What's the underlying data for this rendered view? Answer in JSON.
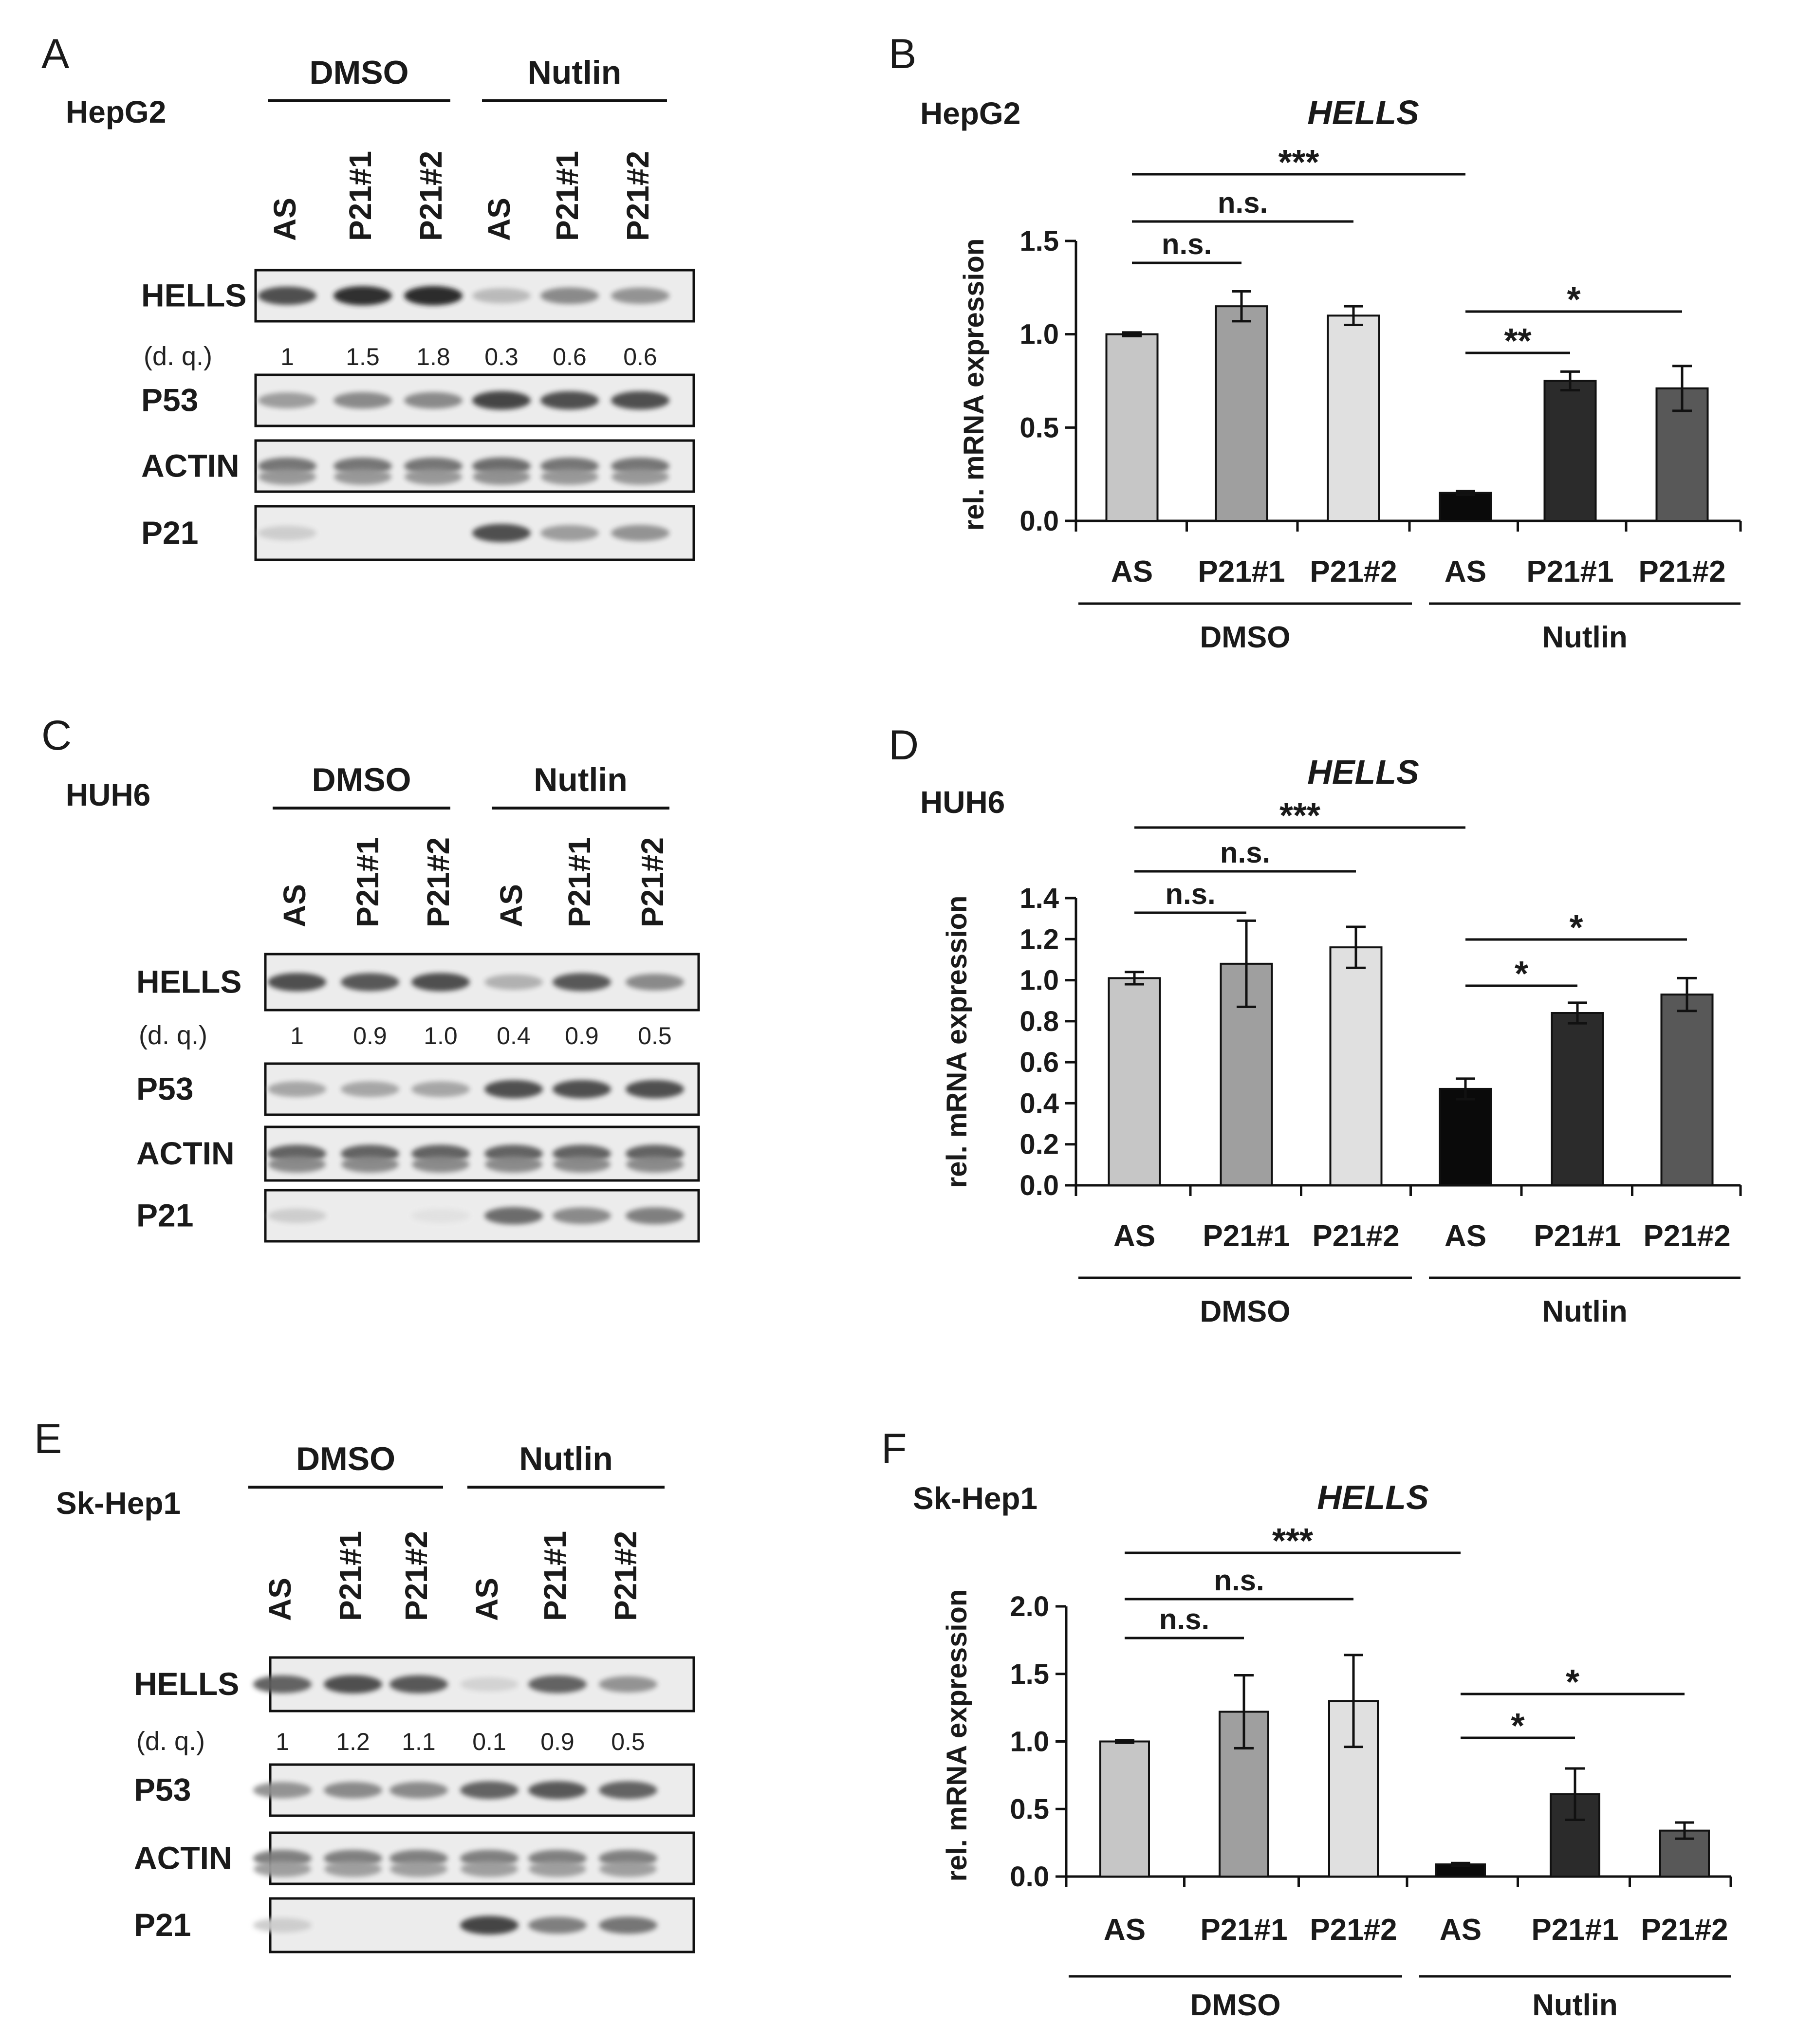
{
  "panels": [
    {
      "blot": {
        "letter": "A",
        "cell_line": "HepG2",
        "treatments": [
          "DMSO",
          "Nutlin"
        ],
        "lanes": [
          "AS",
          "P21#1",
          "P21#2",
          "AS",
          "P21#1",
          "P21#2"
        ],
        "rows": [
          "HELLS",
          "P53",
          "ACTIN",
          "P21"
        ],
        "dq_label": "(d. q.)",
        "dq_values": [
          "1",
          "1.5",
          "1.8",
          "0.3",
          "0.6",
          "0.6"
        ],
        "hells_intensity": [
          0.8,
          0.95,
          0.97,
          0.25,
          0.5,
          0.45
        ],
        "p53_intensity": [
          0.4,
          0.5,
          0.5,
          0.85,
          0.8,
          0.8
        ],
        "actin_intensity": [
          0.6,
          0.6,
          0.6,
          0.65,
          0.6,
          0.6
        ],
        "p21_intensity": [
          0.15,
          0.0,
          0.0,
          0.8,
          0.4,
          0.45
        ]
      },
      "chart": {
        "letter": "B",
        "cell_line": "HepG2",
        "title": "HELLS",
        "ylabel": "rel. mRNA expression",
        "ylim": [
          0,
          1.5
        ],
        "yticks": [
          "0.0",
          "0.5",
          "1.0",
          "1.5"
        ],
        "groups": [
          "DMSO",
          "Nutlin"
        ],
        "chart_data": {
          "type": "bar",
          "categories": [
            "AS",
            "P21#1",
            "P21#2",
            "AS",
            "P21#1",
            "P21#2"
          ],
          "values": [
            1.0,
            1.15,
            1.1,
            0.15,
            0.75,
            0.71
          ],
          "errors": [
            0.01,
            0.08,
            0.05,
            0.01,
            0.05,
            0.12
          ],
          "ylim": [
            0,
            1.5
          ]
        },
        "sig": [
          {
            "from": 0,
            "to": 3,
            "label": "***"
          },
          {
            "from": 0,
            "to": 2,
            "label": "n.s."
          },
          {
            "from": 0,
            "to": 1,
            "label": "n.s."
          },
          {
            "from": 3,
            "to": 5,
            "label": "*"
          },
          {
            "from": 3,
            "to": 4,
            "label": "**"
          }
        ]
      }
    },
    {
      "blot": {
        "letter": "C",
        "cell_line": "HUH6",
        "treatments": [
          "DMSO",
          "Nutlin"
        ],
        "lanes": [
          "AS",
          "P21#1",
          "P21#2",
          "AS",
          "P21#1",
          "P21#2"
        ],
        "rows": [
          "HELLS",
          "P53",
          "ACTIN",
          "P21"
        ],
        "dq_label": "(d. q.)",
        "dq_values": [
          "1",
          "0.9",
          "1.0",
          "0.4",
          "0.9",
          "0.5"
        ],
        "hells_intensity": [
          0.8,
          0.75,
          0.8,
          0.3,
          0.75,
          0.5
        ],
        "p53_intensity": [
          0.35,
          0.35,
          0.35,
          0.8,
          0.8,
          0.8
        ],
        "actin_intensity": [
          0.7,
          0.7,
          0.7,
          0.7,
          0.7,
          0.7
        ],
        "p21_intensity": [
          0.15,
          0.0,
          0.05,
          0.65,
          0.5,
          0.55
        ]
      },
      "chart": {
        "letter": "D",
        "cell_line": "HUH6",
        "title": "HELLS",
        "ylabel": "rel. mRNA expression",
        "ylim": [
          0,
          1.4
        ],
        "yticks": [
          "0.0",
          "0.2",
          "0.4",
          "0.6",
          "0.8",
          "1.0",
          "1.2",
          "1.4"
        ],
        "groups": [
          "DMSO",
          "Nutlin"
        ],
        "chart_data": {
          "type": "bar",
          "categories": [
            "AS",
            "P21#1",
            "P21#2",
            "AS",
            "P21#1",
            "P21#2"
          ],
          "values": [
            1.01,
            1.08,
            1.16,
            0.47,
            0.84,
            0.93
          ],
          "errors": [
            0.03,
            0.21,
            0.1,
            0.05,
            0.05,
            0.08
          ],
          "ylim": [
            0,
            1.4
          ]
        },
        "sig": [
          {
            "from": 0,
            "to": 3,
            "label": "***"
          },
          {
            "from": 0,
            "to": 2,
            "label": "n.s."
          },
          {
            "from": 0,
            "to": 1,
            "label": "n.s."
          },
          {
            "from": 3,
            "to": 5,
            "label": "*"
          },
          {
            "from": 3,
            "to": 4,
            "label": "*"
          }
        ]
      }
    },
    {
      "blot": {
        "letter": "E",
        "cell_line": "Sk-Hep1",
        "treatments": [
          "DMSO",
          "Nutlin"
        ],
        "lanes": [
          "AS",
          "P21#1",
          "P21#2",
          "AS",
          "P21#1",
          "P21#2"
        ],
        "rows": [
          "HELLS",
          "P53",
          "ACTIN",
          "P21"
        ],
        "dq_label": "(d. q.)",
        "dq_values": [
          "1",
          "1.2",
          "1.1",
          "0.1",
          "0.9",
          "0.5"
        ],
        "hells_intensity": [
          0.7,
          0.8,
          0.75,
          0.12,
          0.7,
          0.45
        ],
        "p53_intensity": [
          0.45,
          0.5,
          0.5,
          0.7,
          0.75,
          0.7
        ],
        "actin_intensity": [
          0.55,
          0.55,
          0.55,
          0.55,
          0.55,
          0.55
        ],
        "p21_intensity": [
          0.15,
          0.0,
          0.0,
          0.85,
          0.55,
          0.6
        ]
      },
      "chart": {
        "letter": "F",
        "cell_line": "Sk-Hep1",
        "title": "HELLS",
        "ylabel": "rel. mRNA expression",
        "ylim": [
          0,
          2.0
        ],
        "yticks": [
          "0.0",
          "0.5",
          "1.0",
          "1.5",
          "2.0"
        ],
        "groups": [
          "DMSO",
          "Nutlin"
        ],
        "chart_data": {
          "type": "bar",
          "categories": [
            "AS",
            "P21#1",
            "P21#2",
            "AS",
            "P21#1",
            "P21#2"
          ],
          "values": [
            1.0,
            1.22,
            1.3,
            0.09,
            0.61,
            0.34
          ],
          "errors": [
            0.01,
            0.27,
            0.34,
            0.01,
            0.19,
            0.06
          ],
          "ylim": [
            0,
            2.0
          ]
        },
        "sig": [
          {
            "from": 0,
            "to": 3,
            "label": "***"
          },
          {
            "from": 0,
            "to": 2,
            "label": "n.s."
          },
          {
            "from": 0,
            "to": 1,
            "label": "n.s."
          },
          {
            "from": 3,
            "to": 5,
            "label": "*"
          },
          {
            "from": 3,
            "to": 4,
            "label": "*"
          }
        ]
      }
    }
  ],
  "bar_colors": [
    "#c6c6c6",
    "#9f9f9f",
    "#e0e0e0",
    "#0a0a0a",
    "#2b2b2b",
    "#585858"
  ]
}
